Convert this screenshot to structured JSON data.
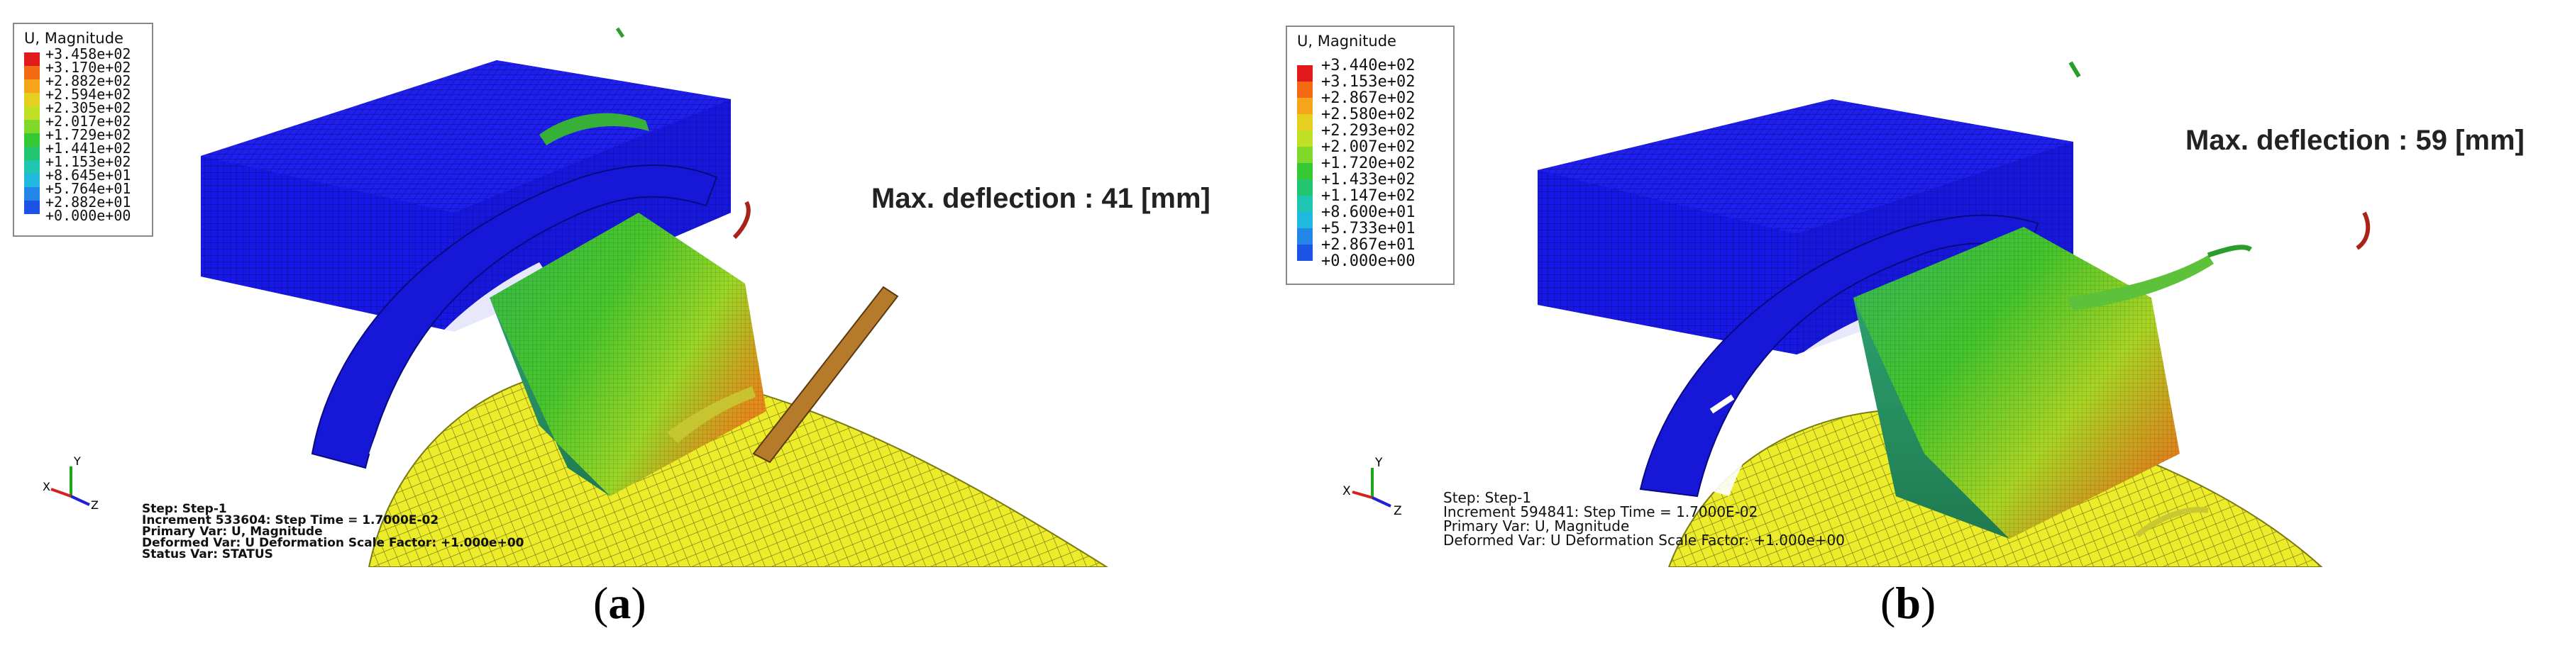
{
  "panels": [
    {
      "id": "a",
      "legend": {
        "title": "U, Magnitude",
        "entries": [
          "+3.458e+02",
          "+3.170e+02",
          "+2.882e+02",
          "+2.594e+02",
          "+2.305e+02",
          "+2.017e+02",
          "+1.729e+02",
          "+1.441e+02",
          "+1.153e+02",
          "+8.645e+01",
          "+5.764e+01",
          "+2.882e+01",
          "+0.000e+00"
        ],
        "colors": [
          "#e31a1c",
          "#f26a12",
          "#f6a51b",
          "#e6d01f",
          "#bfe023",
          "#7fd82a",
          "#35c934",
          "#23c66f",
          "#1fc6b2",
          "#20b8de",
          "#2485e8",
          "#1c52e6",
          "#1b22dc"
        ]
      },
      "max_deflection": "Max. deflection : 41 [mm]",
      "status_lines": [
        "Step: Step-1",
        "Increment    533604: Step Time =    1.7000E-02",
        "Primary Var: U, Magnitude",
        "Deformed Var: U   Deformation Scale Factor: +1.000e+00",
        "Status Var: STATUS"
      ],
      "axes": {
        "x": "X",
        "y": "Y",
        "z": "Z"
      },
      "caption_open": "(",
      "caption_letter": "a",
      "caption_close": ")"
    },
    {
      "id": "b",
      "legend": {
        "title": "U, Magnitude",
        "entries": [
          "+3.440e+02",
          "+3.153e+02",
          "+2.867e+02",
          "+2.580e+02",
          "+2.293e+02",
          "+2.007e+02",
          "+1.720e+02",
          "+1.433e+02",
          "+1.147e+02",
          "+8.600e+01",
          "+5.733e+01",
          "+2.867e+01",
          "+0.000e+00"
        ],
        "colors": [
          "#e31a1c",
          "#f26a12",
          "#f6a51b",
          "#e6d01f",
          "#bfe023",
          "#7fd82a",
          "#35c934",
          "#23c66f",
          "#1fc6b2",
          "#20b8de",
          "#2485e8",
          "#1c52e6",
          "#1b22dc"
        ]
      },
      "max_deflection": "Max. deflection : 59 [mm]",
      "status_lines": [
        "Step: Step-1",
        "Increment    594841: Step Time =    1.7000E-02",
        "Primary Var: U, Magnitude",
        "Deformed Var: U   Deformation Scale Factor: +1.000e+00"
      ],
      "axes": {
        "x": "X",
        "y": "Y",
        "z": "Z"
      },
      "caption_open": "(",
      "caption_letter": "b",
      "caption_close": ")"
    }
  ]
}
